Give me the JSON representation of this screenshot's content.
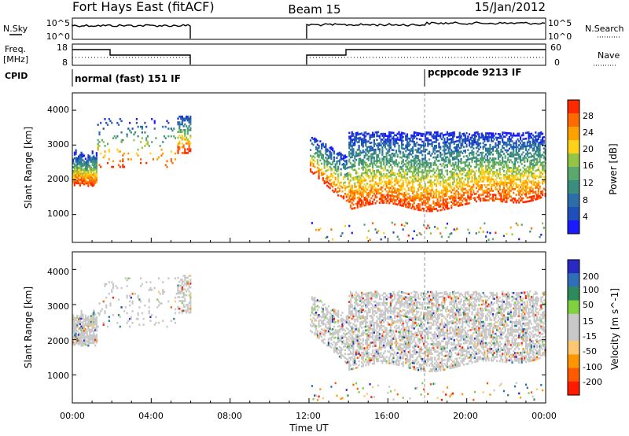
{
  "header": {
    "station": "Fort Hays East (fitACF)",
    "beam": "Beam 15",
    "date": "15/Jan/2012"
  },
  "nsky_panel": {
    "left_label": "N.Sky",
    "right_label": "N.Search",
    "left_ticks": [
      "10^5",
      "10^0"
    ],
    "right_ticks": [
      "10^5",
      "10^0"
    ]
  },
  "freq_panel": {
    "left_label_1": "Freq.",
    "left_label_2": "[MHz]",
    "right_label": "Nave",
    "left_ticks": [
      "18",
      "8"
    ],
    "right_ticks": [
      "60",
      "0"
    ]
  },
  "cpid_panel": {
    "label": "CPID",
    "modes": [
      {
        "name": "normal (fast) 151 IF",
        "start_hour": 0
      },
      {
        "name": "pcppcode 9213 IF",
        "start_hour": 18
      }
    ]
  },
  "colors": {
    "power": [
      "#1a1aff",
      "#1f4fb8",
      "#2c6fa8",
      "#3b8e7e",
      "#5aa86b",
      "#94c445",
      "#ffd21a",
      "#ffa200",
      "#ff6a00",
      "#ff2a00"
    ],
    "velocity": [
      "#ff1a00",
      "#ff5a00",
      "#ff9500",
      "#ffc870",
      "#c8c8c8",
      "#c8c8c8",
      "#7fd13f",
      "#2e8a5a",
      "#2f6fb5",
      "#2929c4"
    ]
  },
  "chart_data": [
    {
      "type": "heatmap",
      "title": "Power",
      "ylabel": "Slant Range [km]",
      "xlabel": "Time UT",
      "ylim": [
        200,
        4500
      ],
      "x_ticks": [
        "00:00",
        "04:00",
        "08:00",
        "12:00",
        "16:00",
        "20:00",
        "00:00"
      ],
      "y_ticks": [
        1000,
        2000,
        3000,
        4000
      ],
      "colorbar": {
        "label": "Power [dB]",
        "ticks": [
          "28",
          "24",
          "20",
          "16",
          "12",
          "8",
          "4"
        ]
      }
    },
    {
      "type": "heatmap",
      "title": "Velocity",
      "ylabel": "Slant Range [km]",
      "xlabel": "Time UT",
      "ylim": [
        200,
        4500
      ],
      "x_ticks": [
        "00:00",
        "04:00",
        "08:00",
        "12:00",
        "16:00",
        "20:00",
        "00:00"
      ],
      "y_ticks": [
        1000,
        2000,
        3000,
        4000
      ],
      "colorbar": {
        "label": "Velocity [m s^-1]",
        "ticks": [
          "200",
          "100",
          "50",
          "15",
          "-15",
          "-50",
          "-100",
          "-200"
        ]
      }
    }
  ],
  "x_axis_label": "Time UT"
}
